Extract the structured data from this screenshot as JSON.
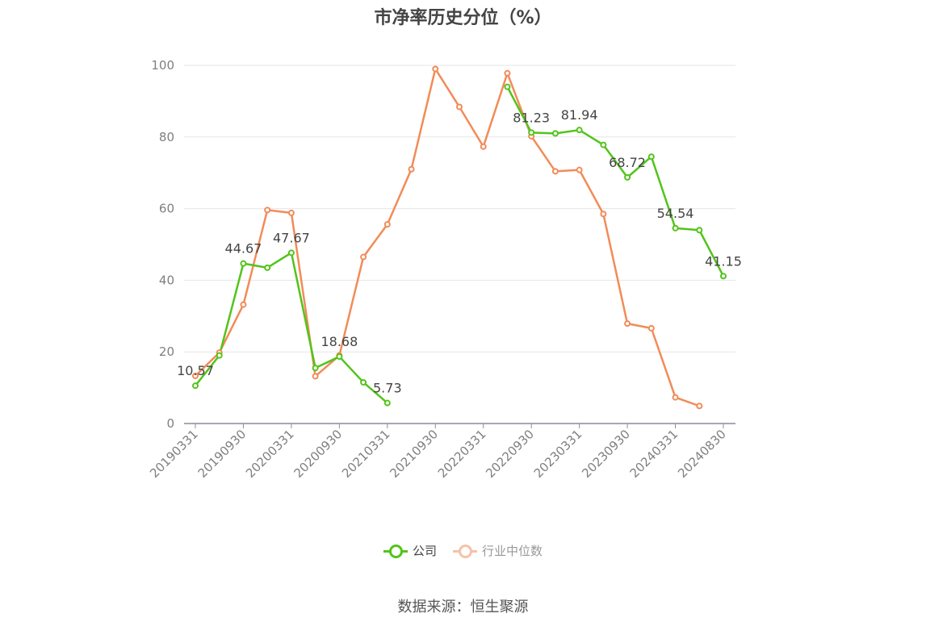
{
  "chart_data": {
    "type": "line",
    "title": "市净率历史分位（%）",
    "xlabel": "",
    "ylabel": "",
    "ylim": [
      0,
      100
    ],
    "yticks": [
      0,
      20,
      40,
      60,
      80,
      100
    ],
    "grid": true,
    "legend_position": "bottom",
    "x": [
      "20190331",
      "20190630",
      "20190930",
      "20191231",
      "20200331",
      "20200630",
      "20200930",
      "20201231",
      "20210331",
      "20210630",
      "20210930",
      "20211231",
      "20220331",
      "20220630",
      "20220930",
      "20221231",
      "20230331",
      "20230630",
      "20230930",
      "20231231",
      "20240331",
      "20240630",
      "20240830"
    ],
    "xticks": [
      "20190331",
      "20190930",
      "20200331",
      "20200930",
      "20210331",
      "20210930",
      "20220331",
      "20220930",
      "20230331",
      "20230930",
      "20240331",
      "20240830"
    ],
    "series": [
      {
        "name": "公司",
        "color": "#52c41a",
        "values": [
          10.57,
          19.0,
          44.67,
          43.5,
          47.67,
          15.5,
          18.68,
          11.5,
          5.73,
          null,
          null,
          null,
          null,
          94.0,
          81.23,
          81.0,
          81.94,
          77.8,
          68.72,
          74.5,
          54.54,
          54.0,
          41.15
        ],
        "labels": {
          "0": "10.57",
          "2": "44.67",
          "4": "47.67",
          "6": "18.68",
          "8": "5.73",
          "14": "81.23",
          "16": "81.94",
          "18": "68.72",
          "20": "54.54",
          "22": "41.15"
        }
      },
      {
        "name": "行业中位数",
        "color": "#f28b58",
        "values": [
          13.3,
          19.8,
          33.2,
          59.6,
          58.8,
          13.2,
          19.0,
          46.5,
          55.6,
          71.0,
          99.0,
          88.4,
          77.3,
          97.8,
          80.2,
          70.4,
          70.8,
          58.5,
          27.9,
          26.6,
          7.3,
          4.9,
          null
        ]
      }
    ]
  },
  "legend": {
    "company_label": "公司",
    "industry_label": "行业中位数"
  },
  "footer": {
    "source": "数据来源：恒生聚源"
  }
}
